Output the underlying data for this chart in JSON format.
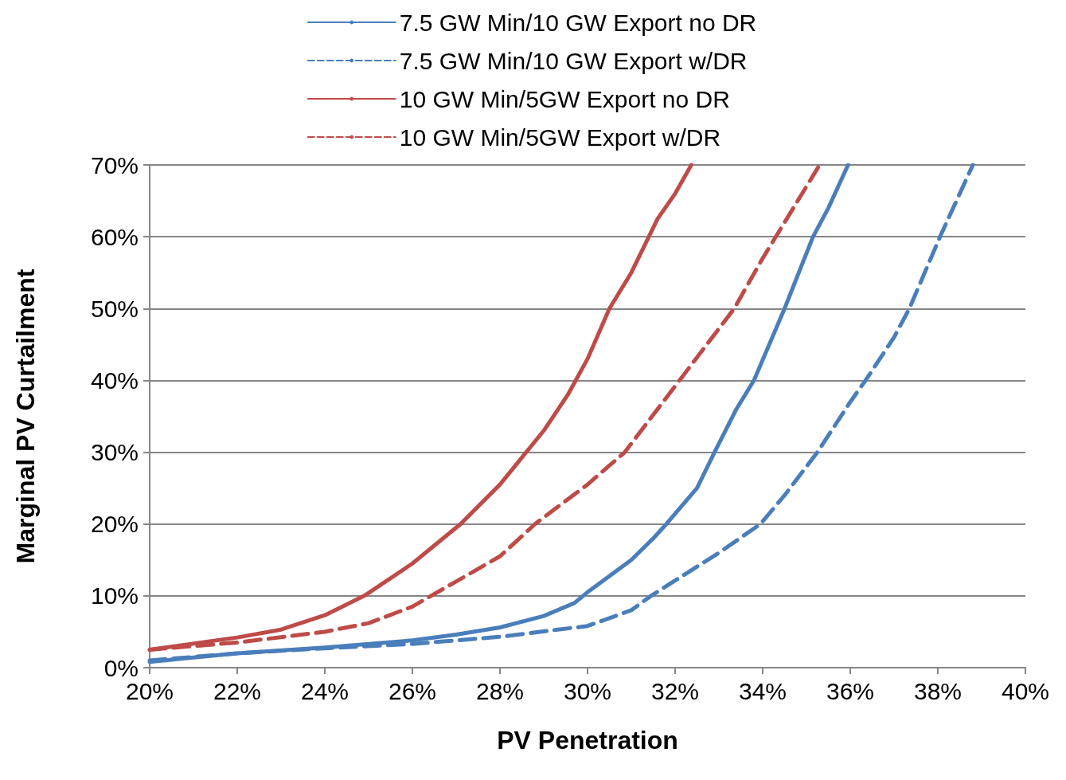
{
  "chart_data": {
    "type": "line",
    "xlabel": "PV Penetration",
    "ylabel": "Marginal PV Curtailment",
    "xlim": [
      20,
      40
    ],
    "ylim": [
      0,
      70
    ],
    "xticks": [
      {
        "value": 20,
        "label": "20%"
      },
      {
        "value": 22,
        "label": "22%"
      },
      {
        "value": 24,
        "label": "24%"
      },
      {
        "value": 26,
        "label": "26%"
      },
      {
        "value": 28,
        "label": "28%"
      },
      {
        "value": 30,
        "label": "30%"
      },
      {
        "value": 32,
        "label": "32%"
      },
      {
        "value": 34,
        "label": "34%"
      },
      {
        "value": 36,
        "label": "36%"
      },
      {
        "value": 38,
        "label": "38%"
      },
      {
        "value": 40,
        "label": "40%"
      }
    ],
    "yticks": [
      {
        "value": 0,
        "label": "0%"
      },
      {
        "value": 10,
        "label": "10%"
      },
      {
        "value": 20,
        "label": "20%"
      },
      {
        "value": 30,
        "label": "30%"
      },
      {
        "value": 40,
        "label": "40%"
      },
      {
        "value": 50,
        "label": "50%"
      },
      {
        "value": 60,
        "label": "60%"
      },
      {
        "value": 70,
        "label": "70%"
      }
    ],
    "grid": "y",
    "legend": "top",
    "marker": "none",
    "series": [
      {
        "name": "7.5 GW Min/10 GW Export no DR",
        "color": "#4a7ebb",
        "line_style": "solid",
        "x": [
          20,
          22,
          24,
          26,
          27,
          28,
          29,
          29.7,
          30,
          31,
          31.5,
          31.8,
          32.5,
          32.9,
          33.4,
          33.8,
          34.5,
          35.15,
          35.5,
          35.95
        ],
        "values": [
          0.8,
          2,
          2.8,
          3.8,
          4.6,
          5.6,
          7.2,
          9,
          10.5,
          15,
          18,
          20,
          25,
          30,
          36,
          40,
          50,
          60,
          64,
          70
        ]
      },
      {
        "name": "7.5 GW Min/10 GW Export w/DR",
        "color": "#4a7ebb",
        "line_style": "dashed",
        "x": [
          20,
          22,
          24,
          26,
          28,
          30,
          31,
          31.45,
          33,
          33.95,
          34.5,
          35.25,
          36,
          36.35,
          37,
          37.35,
          38.05,
          38.8
        ],
        "values": [
          1,
          2,
          2.7,
          3.3,
          4.3,
          5.8,
          8,
          10,
          16,
          20,
          24,
          30,
          37,
          40,
          46,
          50,
          60,
          70
        ]
      },
      {
        "name": "10 GW Min/5GW Export no DR",
        "color": "#be4b48",
        "line_style": "solid",
        "x": [
          20,
          22,
          23,
          24,
          24.9,
          26,
          27.1,
          28,
          29,
          29.55,
          30,
          30.5,
          31,
          31.4,
          31.6,
          32,
          32.37
        ],
        "values": [
          2.5,
          4.2,
          5.3,
          7.3,
          10,
          14.5,
          20,
          25.5,
          33,
          38,
          43,
          50,
          55,
          60,
          62.5,
          66,
          70
        ]
      },
      {
        "name": "10 GW Min/5GW Export w/DR",
        "color": "#be4b48",
        "line_style": "dashed",
        "x": [
          20,
          22,
          24,
          25,
          26,
          27,
          28,
          28.8,
          30,
          30.85,
          32.1,
          33.35,
          34,
          34.5,
          35.3
        ],
        "values": [
          2.5,
          3.5,
          5,
          6.2,
          8.5,
          12,
          15.5,
          20,
          25.5,
          30,
          40,
          50,
          57,
          62,
          70
        ]
      }
    ]
  }
}
